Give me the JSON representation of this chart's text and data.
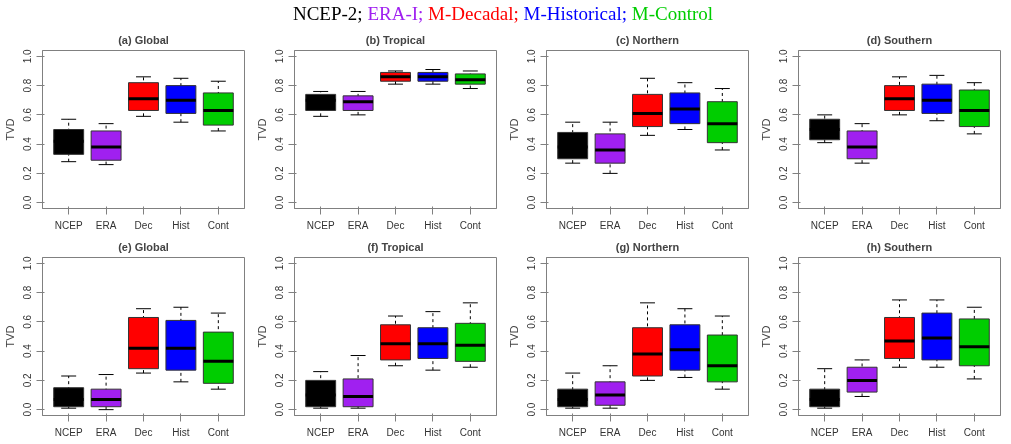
{
  "chart_data": [
    {
      "type": "other",
      "annotations": [
        "NCEP-2;",
        "ERA-I;",
        "M-Decadal;",
        "M-Historical;",
        "M-Control"
      ],
      "colors": [
        "#000000",
        "#a020f0",
        "#ff0000",
        "#0000ff",
        "#00cd00"
      ]
    },
    {
      "type": "box",
      "title": "(a) Global",
      "ylabel": "TVD",
      "categories": [
        "NCEP",
        "ERA",
        "Dec",
        "Hist",
        "Cont"
      ],
      "colors": [
        "#000000",
        "#a020f0",
        "#ff0000",
        "#0000ff",
        "#00cd00"
      ],
      "ylim": [
        -0.04,
        1.04
      ],
      "yticks": [
        {
          "value": 0,
          "label": "0.0"
        },
        {
          "value": 0.2,
          "label": "0.2"
        },
        {
          "value": 0.4,
          "label": "0.4"
        },
        {
          "value": 0.6,
          "label": "0.6"
        },
        {
          "value": 0.8,
          "label": "0.8"
        },
        {
          "value": 1,
          "label": "1.0"
        }
      ],
      "grid": false,
      "boxes": [
        {
          "low": 0.28,
          "q1": 0.33,
          "median": 0.42,
          "q3": 0.5,
          "high": 0.57
        },
        {
          "low": 0.26,
          "q1": 0.29,
          "median": 0.38,
          "q3": 0.49,
          "high": 0.54
        },
        {
          "low": 0.59,
          "q1": 0.63,
          "median": 0.71,
          "q3": 0.82,
          "high": 0.86
        },
        {
          "low": 0.55,
          "q1": 0.61,
          "median": 0.7,
          "q3": 0.8,
          "high": 0.85
        },
        {
          "low": 0.49,
          "q1": 0.53,
          "median": 0.63,
          "q3": 0.75,
          "high": 0.83
        }
      ]
    },
    {
      "type": "box",
      "title": "(b) Tropical",
      "ylabel": "TVD",
      "categories": [
        "NCEP",
        "ERA",
        "Dec",
        "Hist",
        "Cont"
      ],
      "colors": [
        "#000000",
        "#a020f0",
        "#ff0000",
        "#0000ff",
        "#00cd00"
      ],
      "ylim": [
        -0.04,
        1.04
      ],
      "yticks": [
        {
          "value": 0,
          "label": "0.0"
        },
        {
          "value": 0.2,
          "label": "0.2"
        },
        {
          "value": 0.4,
          "label": "0.4"
        },
        {
          "value": 0.6,
          "label": "0.6"
        },
        {
          "value": 0.8,
          "label": "0.8"
        },
        {
          "value": 1,
          "label": "1.0"
        }
      ],
      "grid": false,
      "boxes": [
        {
          "low": 0.59,
          "q1": 0.63,
          "median": 0.7,
          "q3": 0.74,
          "high": 0.76
        },
        {
          "low": 0.6,
          "q1": 0.63,
          "median": 0.69,
          "q3": 0.73,
          "high": 0.76
        },
        {
          "low": 0.81,
          "q1": 0.83,
          "median": 0.86,
          "q3": 0.89,
          "high": 0.9
        },
        {
          "low": 0.81,
          "q1": 0.83,
          "median": 0.86,
          "q3": 0.89,
          "high": 0.91
        },
        {
          "low": 0.78,
          "q1": 0.81,
          "median": 0.84,
          "q3": 0.88,
          "high": 0.9
        }
      ]
    },
    {
      "type": "box",
      "title": "(c) Northern",
      "ylabel": "TVD",
      "categories": [
        "NCEP",
        "ERA",
        "Dec",
        "Hist",
        "Cont"
      ],
      "colors": [
        "#000000",
        "#a020f0",
        "#ff0000",
        "#0000ff",
        "#00cd00"
      ],
      "ylim": [
        -0.04,
        1.04
      ],
      "yticks": [
        {
          "value": 0,
          "label": "0.0"
        },
        {
          "value": 0.2,
          "label": "0.2"
        },
        {
          "value": 0.4,
          "label": "0.4"
        },
        {
          "value": 0.6,
          "label": "0.6"
        },
        {
          "value": 0.8,
          "label": "0.8"
        },
        {
          "value": 1,
          "label": "1.0"
        }
      ],
      "grid": false,
      "boxes": [
        {
          "low": 0.27,
          "q1": 0.3,
          "median": 0.38,
          "q3": 0.48,
          "high": 0.55
        },
        {
          "low": 0.2,
          "q1": 0.27,
          "median": 0.36,
          "q3": 0.47,
          "high": 0.55
        },
        {
          "low": 0.46,
          "q1": 0.52,
          "median": 0.61,
          "q3": 0.74,
          "high": 0.85
        },
        {
          "low": 0.5,
          "q1": 0.54,
          "median": 0.64,
          "q3": 0.75,
          "high": 0.82
        },
        {
          "low": 0.36,
          "q1": 0.41,
          "median": 0.54,
          "q3": 0.69,
          "high": 0.78
        }
      ]
    },
    {
      "type": "box",
      "title": "(d) Southern",
      "ylabel": "TVD",
      "categories": [
        "NCEP",
        "ERA",
        "Dec",
        "Hist",
        "Cont"
      ],
      "colors": [
        "#000000",
        "#a020f0",
        "#ff0000",
        "#0000ff",
        "#00cd00"
      ],
      "ylim": [
        -0.04,
        1.04
      ],
      "yticks": [
        {
          "value": 0,
          "label": "0.0"
        },
        {
          "value": 0.2,
          "label": "0.2"
        },
        {
          "value": 0.4,
          "label": "0.4"
        },
        {
          "value": 0.6,
          "label": "0.6"
        },
        {
          "value": 0.8,
          "label": "0.8"
        },
        {
          "value": 1,
          "label": "1.0"
        }
      ],
      "grid": false,
      "boxes": [
        {
          "low": 0.41,
          "q1": 0.43,
          "median": 0.5,
          "q3": 0.57,
          "high": 0.6
        },
        {
          "low": 0.27,
          "q1": 0.3,
          "median": 0.38,
          "q3": 0.49,
          "high": 0.54
        },
        {
          "low": 0.6,
          "q1": 0.63,
          "median": 0.71,
          "q3": 0.8,
          "high": 0.86
        },
        {
          "low": 0.56,
          "q1": 0.61,
          "median": 0.7,
          "q3": 0.81,
          "high": 0.87
        },
        {
          "low": 0.47,
          "q1": 0.52,
          "median": 0.63,
          "q3": 0.77,
          "high": 0.82
        }
      ]
    },
    {
      "type": "box",
      "title": "(e) Global",
      "ylabel": "TVD",
      "categories": [
        "NCEP",
        "ERA",
        "Dec",
        "Hist",
        "Cont"
      ],
      "colors": [
        "#000000",
        "#a020f0",
        "#ff0000",
        "#0000ff",
        "#00cd00"
      ],
      "ylim": [
        -0.04,
        1.04
      ],
      "yticks": [
        {
          "value": 0,
          "label": "0.0"
        },
        {
          "value": 0.2,
          "label": "0.2"
        },
        {
          "value": 0.4,
          "label": "0.4"
        },
        {
          "value": 0.6,
          "label": "0.6"
        },
        {
          "value": 0.8,
          "label": "0.8"
        },
        {
          "value": 1,
          "label": "1.0"
        }
      ],
      "grid": false,
      "boxes": [
        {
          "low": 0.01,
          "q1": 0.02,
          "median": 0.07,
          "q3": 0.15,
          "high": 0.23
        },
        {
          "low": 0.0,
          "q1": 0.02,
          "median": 0.07,
          "q3": 0.14,
          "high": 0.24
        },
        {
          "low": 0.25,
          "q1": 0.28,
          "median": 0.42,
          "q3": 0.63,
          "high": 0.69
        },
        {
          "low": 0.19,
          "q1": 0.27,
          "median": 0.42,
          "q3": 0.61,
          "high": 0.7
        },
        {
          "low": 0.14,
          "q1": 0.18,
          "median": 0.33,
          "q3": 0.53,
          "high": 0.66
        }
      ]
    },
    {
      "type": "box",
      "title": "(f) Tropical",
      "ylabel": "TVD",
      "categories": [
        "NCEP",
        "ERA",
        "Dec",
        "Hist",
        "Cont"
      ],
      "colors": [
        "#000000",
        "#a020f0",
        "#ff0000",
        "#0000ff",
        "#00cd00"
      ],
      "ylim": [
        -0.04,
        1.04
      ],
      "yticks": [
        {
          "value": 0,
          "label": "0.0"
        },
        {
          "value": 0.2,
          "label": "0.2"
        },
        {
          "value": 0.4,
          "label": "0.4"
        },
        {
          "value": 0.6,
          "label": "0.6"
        },
        {
          "value": 0.8,
          "label": "0.8"
        },
        {
          "value": 1,
          "label": "1.0"
        }
      ],
      "grid": false,
      "boxes": [
        {
          "low": 0.01,
          "q1": 0.02,
          "median": 0.1,
          "q3": 0.2,
          "high": 0.26
        },
        {
          "low": 0.01,
          "q1": 0.02,
          "median": 0.09,
          "q3": 0.21,
          "high": 0.37
        },
        {
          "low": 0.3,
          "q1": 0.34,
          "median": 0.45,
          "q3": 0.58,
          "high": 0.64
        },
        {
          "low": 0.27,
          "q1": 0.35,
          "median": 0.45,
          "q3": 0.56,
          "high": 0.67
        },
        {
          "low": 0.29,
          "q1": 0.33,
          "median": 0.44,
          "q3": 0.59,
          "high": 0.73
        }
      ]
    },
    {
      "type": "box",
      "title": "(g) Northern",
      "ylabel": "TVD",
      "categories": [
        "NCEP",
        "ERA",
        "Dec",
        "Hist",
        "Cont"
      ],
      "colors": [
        "#000000",
        "#a020f0",
        "#ff0000",
        "#0000ff",
        "#00cd00"
      ],
      "ylim": [
        -0.04,
        1.04
      ],
      "yticks": [
        {
          "value": 0,
          "label": "0.0"
        },
        {
          "value": 0.2,
          "label": "0.2"
        },
        {
          "value": 0.4,
          "label": "0.4"
        },
        {
          "value": 0.6,
          "label": "0.6"
        },
        {
          "value": 0.8,
          "label": "0.8"
        },
        {
          "value": 1,
          "label": "1.0"
        }
      ],
      "grid": false,
      "boxes": [
        {
          "low": 0.01,
          "q1": 0.02,
          "median": 0.07,
          "q3": 0.14,
          "high": 0.25
        },
        {
          "low": 0.01,
          "q1": 0.03,
          "median": 0.1,
          "q3": 0.19,
          "high": 0.3
        },
        {
          "low": 0.2,
          "q1": 0.23,
          "median": 0.38,
          "q3": 0.56,
          "high": 0.73
        },
        {
          "low": 0.22,
          "q1": 0.27,
          "median": 0.41,
          "q3": 0.58,
          "high": 0.69
        },
        {
          "low": 0.14,
          "q1": 0.19,
          "median": 0.3,
          "q3": 0.51,
          "high": 0.64
        }
      ]
    },
    {
      "type": "box",
      "title": "(h) Southern",
      "ylabel": "TVD",
      "categories": [
        "NCEP",
        "ERA",
        "Dec",
        "Hist",
        "Cont"
      ],
      "colors": [
        "#000000",
        "#a020f0",
        "#ff0000",
        "#0000ff",
        "#00cd00"
      ],
      "ylim": [
        -0.04,
        1.04
      ],
      "yticks": [
        {
          "value": 0,
          "label": "0.0"
        },
        {
          "value": 0.2,
          "label": "0.2"
        },
        {
          "value": 0.4,
          "label": "0.4"
        },
        {
          "value": 0.6,
          "label": "0.6"
        },
        {
          "value": 0.8,
          "label": "0.8"
        },
        {
          "value": 1,
          "label": "1.0"
        }
      ],
      "grid": false,
      "boxes": [
        {
          "low": 0.01,
          "q1": 0.02,
          "median": 0.07,
          "q3": 0.14,
          "high": 0.28
        },
        {
          "low": 0.09,
          "q1": 0.12,
          "median": 0.2,
          "q3": 0.29,
          "high": 0.34
        },
        {
          "low": 0.29,
          "q1": 0.35,
          "median": 0.47,
          "q3": 0.63,
          "high": 0.75
        },
        {
          "low": 0.29,
          "q1": 0.34,
          "median": 0.49,
          "q3": 0.66,
          "high": 0.75
        },
        {
          "low": 0.21,
          "q1": 0.3,
          "median": 0.43,
          "q3": 0.62,
          "high": 0.7
        }
      ]
    }
  ]
}
